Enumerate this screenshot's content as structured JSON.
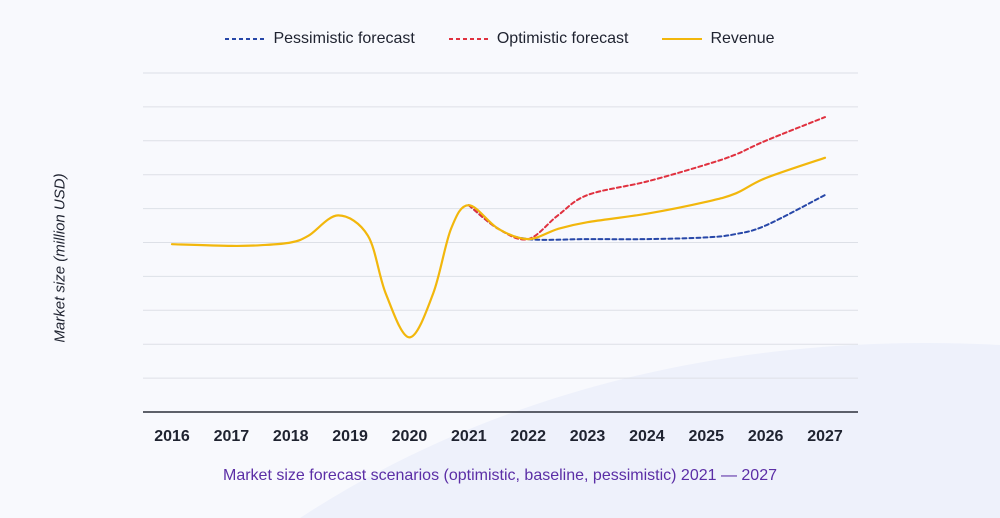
{
  "chart_data": {
    "type": "line",
    "title": "",
    "caption": "Market size forecast scenarios (optimistic, baseline, pessimistic) 2021 — 2027",
    "xlabel": "",
    "ylabel": "Market size (million USD)",
    "x": [
      "2016",
      "2017",
      "2018",
      "2019",
      "2020",
      "2021",
      "2022",
      "2023",
      "2024",
      "2025",
      "2026",
      "2027"
    ],
    "ylim": [
      0,
      10
    ],
    "grid": true,
    "legend_position": "top",
    "series": [
      {
        "name": "Pessimistic forecast",
        "style": "dashed",
        "color": "#2747a8",
        "points": [
          [
            2021,
            6.1
          ],
          [
            2021.5,
            5.4
          ],
          [
            2022,
            5.1
          ],
          [
            2023,
            5.1
          ],
          [
            2024,
            5.1
          ],
          [
            2025,
            5.15
          ],
          [
            2025.5,
            5.25
          ],
          [
            2026,
            5.5
          ],
          [
            2027,
            6.4
          ]
        ]
      },
      {
        "name": "Optimistic forecast",
        "style": "dashed",
        "color": "#e0313f",
        "points": [
          [
            2021,
            6.1
          ],
          [
            2021.5,
            5.4
          ],
          [
            2022,
            5.1
          ],
          [
            2022.5,
            5.8
          ],
          [
            2023,
            6.4
          ],
          [
            2024,
            6.8
          ],
          [
            2025,
            7.3
          ],
          [
            2025.5,
            7.6
          ],
          [
            2026,
            8.0
          ],
          [
            2027,
            8.7
          ]
        ]
      },
      {
        "name": "Revenue",
        "style": "solid",
        "color": "#f2b70c",
        "points": [
          [
            2016,
            4.95
          ],
          [
            2017,
            4.9
          ],
          [
            2017.5,
            4.92
          ],
          [
            2018,
            5.0
          ],
          [
            2018.3,
            5.2
          ],
          [
            2018.8,
            5.8
          ],
          [
            2019.3,
            5.2
          ],
          [
            2019.6,
            3.5
          ],
          [
            2020,
            2.2
          ],
          [
            2020.4,
            3.5
          ],
          [
            2020.7,
            5.4
          ],
          [
            2021,
            6.1
          ],
          [
            2021.5,
            5.4
          ],
          [
            2022,
            5.1
          ],
          [
            2022.5,
            5.4
          ],
          [
            2023,
            5.6
          ],
          [
            2024,
            5.85
          ],
          [
            2025,
            6.2
          ],
          [
            2025.5,
            6.45
          ],
          [
            2026,
            6.9
          ],
          [
            2027,
            7.5
          ]
        ]
      }
    ]
  }
}
